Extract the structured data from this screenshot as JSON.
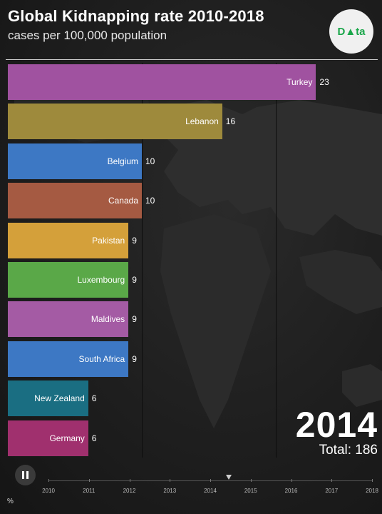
{
  "chart_data": {
    "type": "bar",
    "title": "Global Kidnapping rate 2010-2018",
    "subtitle": "cases per 100,000 population",
    "categories": [
      "Turkey",
      "Lebanon",
      "Belgium",
      "Canada",
      "Pakistan",
      "Luxembourg",
      "Maldives",
      "South Africa",
      "New Zealand",
      "Germany"
    ],
    "values": [
      23,
      16,
      10,
      10,
      9,
      9,
      9,
      9,
      6,
      6
    ],
    "colors": [
      "#a052a0",
      "#9e8a3c",
      "#3d78c4",
      "#a55a42",
      "#d4a03a",
      "#5aa848",
      "#a45ba4",
      "#3d78c4",
      "#1a6e82",
      "#a0306e"
    ],
    "current_year": "2014",
    "total_label": "Total: 186",
    "timeline_ticks": [
      "2010",
      "2011",
      "2012",
      "2013",
      "2014",
      "2015",
      "2016",
      "2017",
      "2018"
    ],
    "unit_label": "%"
  },
  "logo_text": "D▲ta",
  "controls": {
    "play_state": "paused"
  }
}
